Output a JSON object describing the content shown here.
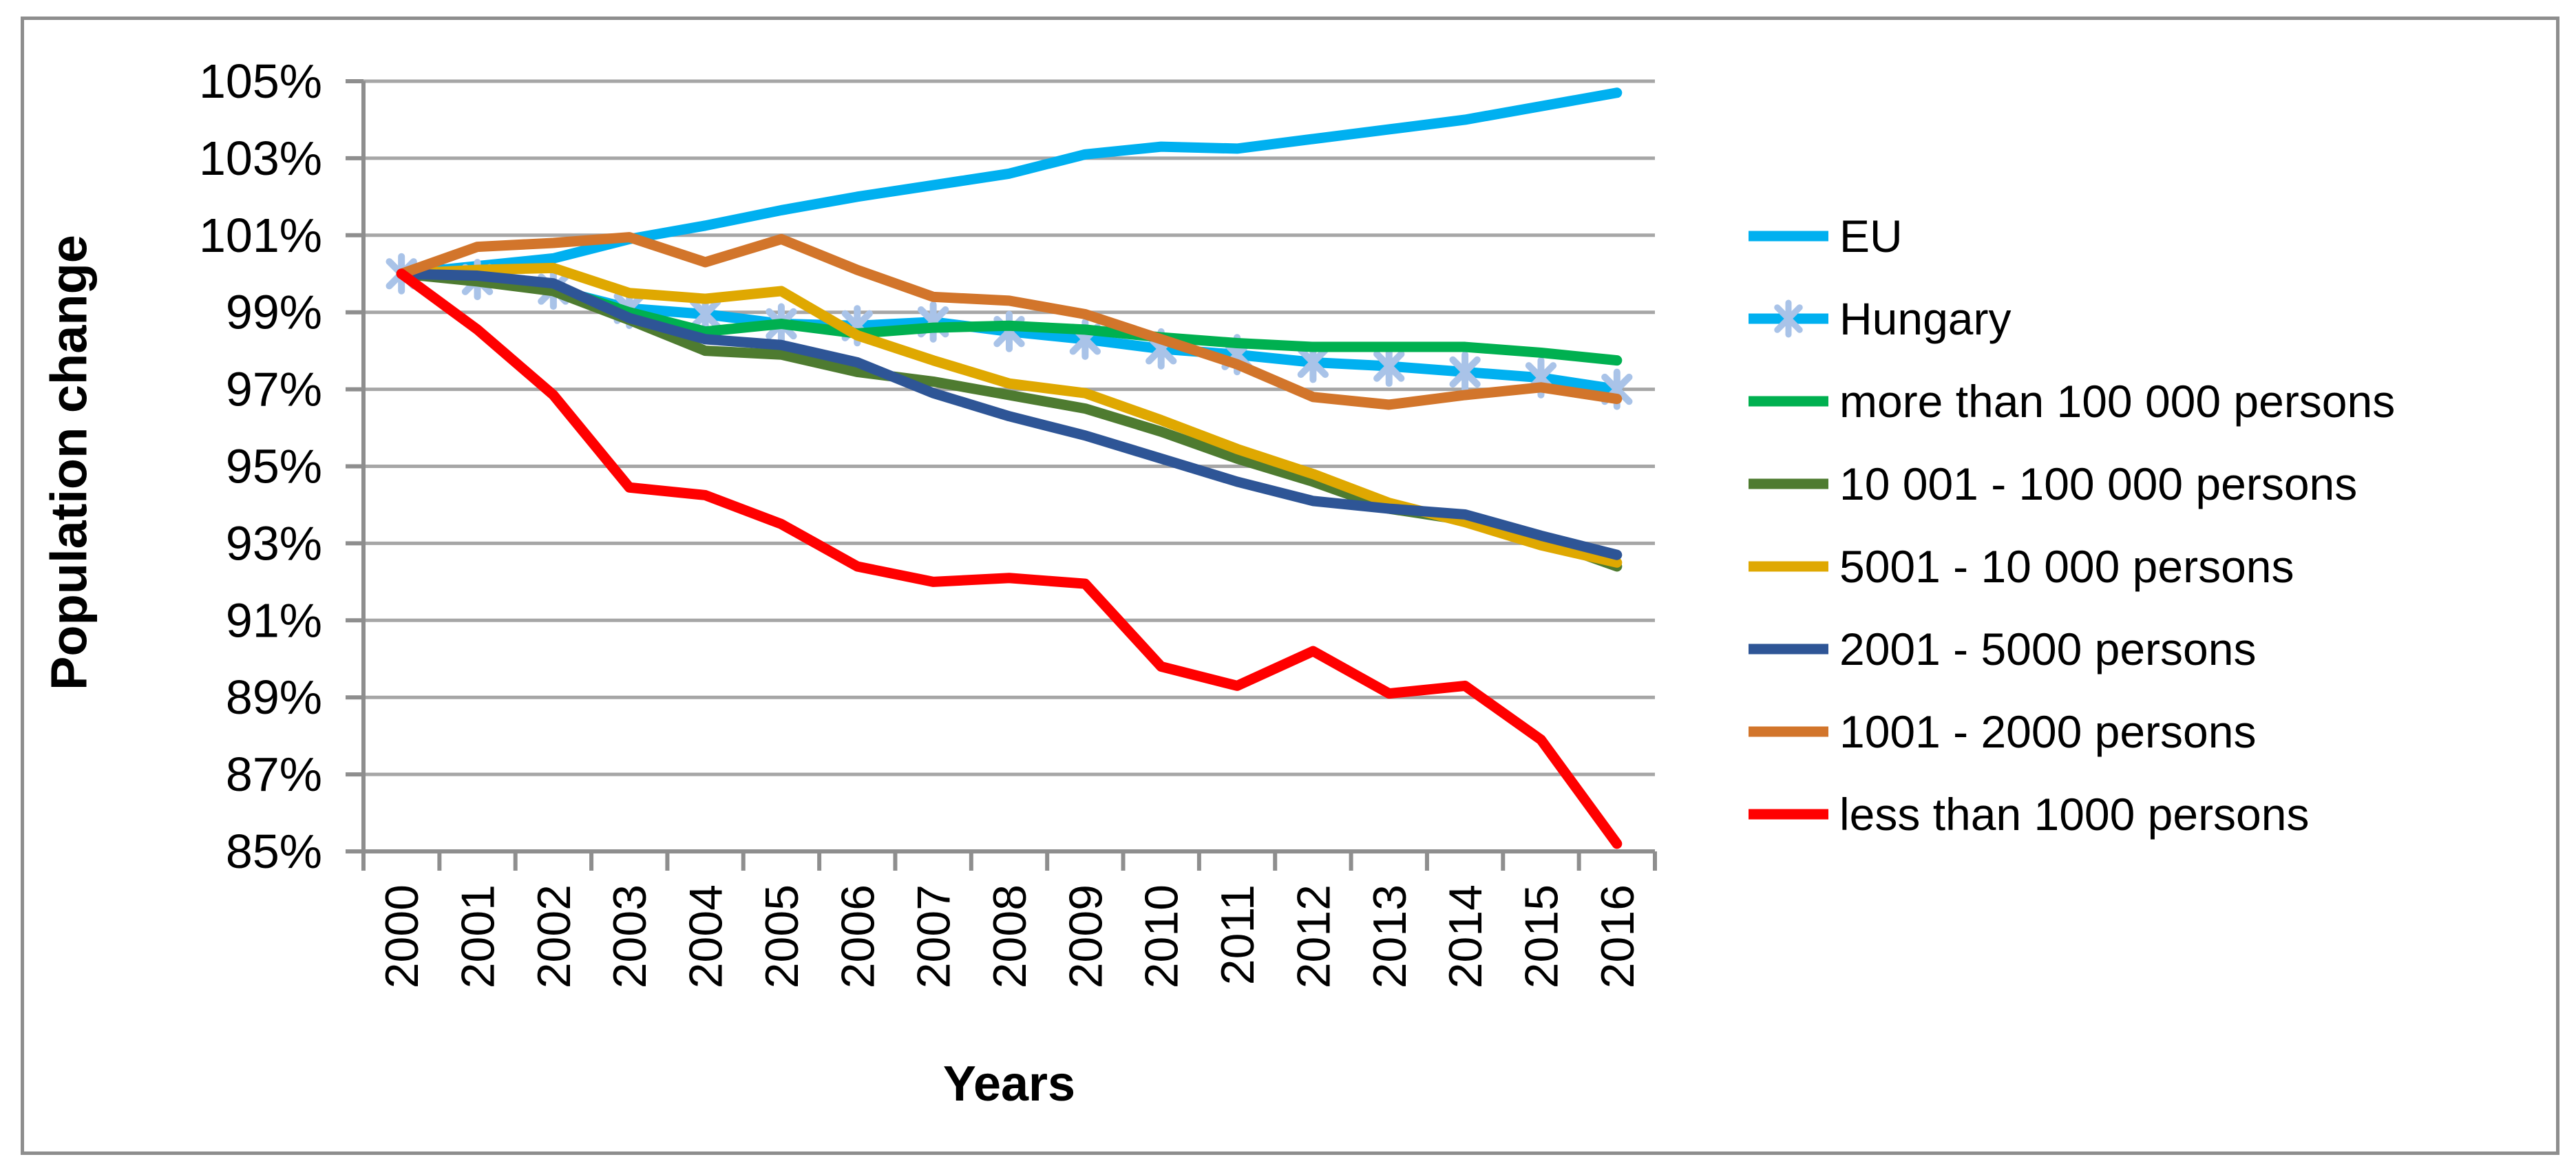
{
  "chart_data": {
    "type": "line",
    "title": "",
    "xlabel": "Years",
    "ylabel": "Population change",
    "x": [
      2000,
      2001,
      2002,
      2003,
      2004,
      2005,
      2006,
      2007,
      2008,
      2009,
      2010,
      2011,
      2012,
      2013,
      2014,
      2015,
      2016
    ],
    "y_ticks": [
      "105%",
      "103%",
      "101%",
      "99%",
      "97%",
      "95%",
      "93%",
      "91%",
      "89%",
      "87%",
      "85%"
    ],
    "ylim": [
      85,
      105
    ],
    "grid": true,
    "legend_position": "right",
    "series": [
      {
        "name": "EU",
        "color": "#00B0F0",
        "marker": false,
        "values": [
          100,
          100.2,
          100.4,
          100.9,
          101.25,
          101.65,
          102.0,
          102.3,
          102.6,
          103.1,
          103.3,
          103.25,
          103.5,
          103.75,
          104.0,
          104.35,
          104.7
        ]
      },
      {
        "name": "Hungary",
        "color": "#00B0F0",
        "marker": true,
        "marker_color": "#A9C3E8",
        "values": [
          100,
          99.85,
          99.6,
          99.1,
          98.95,
          98.7,
          98.65,
          98.75,
          98.5,
          98.3,
          98.05,
          97.9,
          97.7,
          97.6,
          97.45,
          97.3,
          97.0
        ]
      },
      {
        "name": "more than 100 000 persons",
        "color": "#00B050",
        "marker": false,
        "values": [
          100,
          99.85,
          99.65,
          99.0,
          98.5,
          98.7,
          98.45,
          98.6,
          98.65,
          98.55,
          98.35,
          98.2,
          98.1,
          98.1,
          98.1,
          97.95,
          97.75
        ]
      },
      {
        "name": "10 001 - 100 000 persons",
        "color": "#4E7B30",
        "marker": false,
        "values": [
          100,
          99.8,
          99.55,
          98.8,
          98.0,
          97.9,
          97.45,
          97.2,
          96.85,
          96.5,
          95.9,
          95.2,
          94.6,
          93.9,
          93.6,
          93.1,
          92.4
        ]
      },
      {
        "name": "5001 - 10 000 persons",
        "color": "#DFA801",
        "marker": false,
        "values": [
          100,
          100.1,
          100.15,
          99.5,
          99.35,
          99.55,
          98.4,
          97.75,
          97.15,
          96.9,
          96.2,
          95.45,
          94.8,
          94.05,
          93.55,
          92.95,
          92.5
        ]
      },
      {
        "name": "2001 - 5000 persons",
        "color": "#2E5596",
        "marker": false,
        "values": [
          100,
          99.95,
          99.75,
          98.85,
          98.3,
          98.15,
          97.7,
          96.9,
          96.3,
          95.8,
          95.2,
          94.6,
          94.1,
          93.9,
          93.75,
          93.2,
          92.7
        ]
      },
      {
        "name": "1001 - 2000 persons",
        "color": "#D2752B",
        "marker": false,
        "values": [
          100,
          100.7,
          100.8,
          100.95,
          100.3,
          100.9,
          100.1,
          99.4,
          99.3,
          98.95,
          98.3,
          97.65,
          96.8,
          96.6,
          96.85,
          97.05,
          96.75
        ]
      },
      {
        "name": "less than 1000 persons",
        "color": "#FF0000",
        "marker": false,
        "values": [
          100,
          98.55,
          96.85,
          94.45,
          94.25,
          93.5,
          92.4,
          92.0,
          92.1,
          91.95,
          89.8,
          89.3,
          90.2,
          89.1,
          89.3,
          87.9,
          85.2
        ]
      }
    ]
  },
  "layout_colors": {
    "gridline": "#A6A6A6",
    "axis": "#8E8E8E",
    "frame_border": "#8E8E8E",
    "background": "#FFFFFF",
    "text": "#000000"
  }
}
